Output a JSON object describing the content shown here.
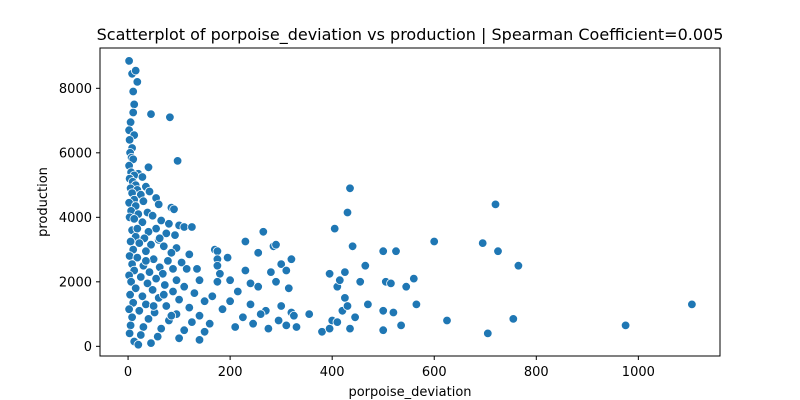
{
  "chart_data": {
    "type": "scatter",
    "title": "Scatterplot of porpoise_deviation vs production | Spearman Coefficient=0.005",
    "xlabel": "porpoise_deviation",
    "ylabel": "production",
    "xlim": [
      -55,
      1160
    ],
    "ylim": [
      -300,
      9250
    ],
    "x_ticks": [
      0,
      200,
      400,
      600,
      800,
      1000
    ],
    "y_ticks": [
      0,
      2000,
      4000,
      6000,
      8000
    ],
    "x_tick_labels": [
      "0",
      "200",
      "400",
      "600",
      "800",
      "1000"
    ],
    "y_tick_labels": [
      "0",
      "2000",
      "4000",
      "6000",
      "8000"
    ],
    "grid": false,
    "marker_color": "#1f77b4",
    "marker_edge_color": "#ffffff",
    "series": [
      {
        "points": [
          [
            2,
            8850
          ],
          [
            8,
            8450
          ],
          [
            15,
            8550
          ],
          [
            10,
            7900
          ],
          [
            18,
            8200
          ],
          [
            12,
            7500
          ],
          [
            10,
            7250
          ],
          [
            45,
            7200
          ],
          [
            82,
            7100
          ],
          [
            5,
            6950
          ],
          [
            2,
            6700
          ],
          [
            12,
            6550
          ],
          [
            3,
            6400
          ],
          [
            8,
            6150
          ],
          [
            4,
            6000
          ],
          [
            7,
            5850
          ],
          [
            10,
            5800
          ],
          [
            97,
            5750
          ],
          [
            2,
            5600
          ],
          [
            40,
            5550
          ],
          [
            6,
            5400
          ],
          [
            20,
            5350
          ],
          [
            12,
            5300
          ],
          [
            28,
            5250
          ],
          [
            3,
            5200
          ],
          [
            9,
            5100
          ],
          [
            15,
            5000
          ],
          [
            35,
            4950
          ],
          [
            5,
            4900
          ],
          [
            18,
            4850
          ],
          [
            42,
            4800
          ],
          [
            8,
            4750
          ],
          [
            25,
            4700
          ],
          [
            55,
            4600
          ],
          [
            12,
            4550
          ],
          [
            30,
            4500
          ],
          [
            2,
            4450
          ],
          [
            60,
            4400
          ],
          [
            15,
            4350
          ],
          [
            85,
            4300
          ],
          [
            90,
            4250
          ],
          [
            6,
            4200
          ],
          [
            38,
            4150
          ],
          [
            20,
            4100
          ],
          [
            48,
            4050
          ],
          [
            3,
            4000
          ],
          [
            12,
            3950
          ],
          [
            65,
            3900
          ],
          [
            28,
            3850
          ],
          [
            80,
            3800
          ],
          [
            100,
            3750
          ],
          [
            110,
            3700
          ],
          [
            125,
            3700
          ],
          [
            55,
            3650
          ],
          [
            8,
            3600
          ],
          [
            40,
            3550
          ],
          [
            75,
            3500
          ],
          [
            92,
            3450
          ],
          [
            15,
            3400
          ],
          [
            32,
            3350
          ],
          [
            60,
            3300
          ],
          [
            5,
            3250
          ],
          [
            22,
            3200
          ],
          [
            45,
            3150
          ],
          [
            70,
            3100
          ],
          [
            95,
            3050
          ],
          [
            10,
            3000
          ],
          [
            35,
            2950
          ],
          [
            85,
            2900
          ],
          [
            120,
            2850
          ],
          [
            3,
            2800
          ],
          [
            18,
            2750
          ],
          [
            50,
            2700
          ],
          [
            78,
            2650
          ],
          [
            105,
            2600
          ],
          [
            8,
            2550
          ],
          [
            30,
            2500
          ],
          [
            62,
            2450
          ],
          [
            88,
            2400
          ],
          [
            115,
            2400
          ],
          [
            135,
            2400
          ],
          [
            12,
            2350
          ],
          [
            42,
            2300
          ],
          [
            68,
            2250
          ],
          [
            2,
            2200
          ],
          [
            25,
            2150
          ],
          [
            55,
            2100
          ],
          [
            95,
            2050
          ],
          [
            140,
            2050
          ],
          [
            6,
            2000
          ],
          [
            38,
            1950
          ],
          [
            72,
            1900
          ],
          [
            110,
            1850
          ],
          [
            15,
            1800
          ],
          [
            48,
            1750
          ],
          [
            88,
            1700
          ],
          [
            130,
            1650
          ],
          [
            4,
            1600
          ],
          [
            28,
            1550
          ],
          [
            60,
            1500
          ],
          [
            100,
            1450
          ],
          [
            150,
            1400
          ],
          [
            10,
            1350
          ],
          [
            35,
            1300
          ],
          [
            75,
            1250
          ],
          [
            120,
            1200
          ],
          [
            2,
            1150
          ],
          [
            22,
            1100
          ],
          [
            52,
            1050
          ],
          [
            95,
            1000
          ],
          [
            140,
            950
          ],
          [
            8,
            900
          ],
          [
            40,
            850
          ],
          [
            80,
            800
          ],
          [
            125,
            750
          ],
          [
            160,
            700
          ],
          [
            5,
            650
          ],
          [
            30,
            600
          ],
          [
            65,
            550
          ],
          [
            110,
            500
          ],
          [
            150,
            450
          ],
          [
            3,
            400
          ],
          [
            25,
            350
          ],
          [
            58,
            300
          ],
          [
            100,
            250
          ],
          [
            140,
            200
          ],
          [
            12,
            150
          ],
          [
            45,
            100
          ],
          [
            20,
            50
          ],
          [
            70,
            1600
          ],
          [
            35,
            2650
          ],
          [
            18,
            3650
          ],
          [
            50,
            1250
          ],
          [
            85,
            950
          ],
          [
            62,
            3350
          ],
          [
            170,
            3000
          ],
          [
            175,
            2950
          ],
          [
            195,
            2750
          ],
          [
            230,
            3250
          ],
          [
            265,
            3550
          ],
          [
            285,
            3100
          ],
          [
            290,
            3150
          ],
          [
            320,
            2700
          ],
          [
            175,
            2700
          ],
          [
            175,
            2500
          ],
          [
            230,
            2350
          ],
          [
            255,
            2900
          ],
          [
            300,
            2550
          ],
          [
            310,
            2350
          ],
          [
            180,
            2250
          ],
          [
            200,
            2050
          ],
          [
            240,
            1950
          ],
          [
            280,
            2300
          ],
          [
            175,
            2000
          ],
          [
            215,
            1700
          ],
          [
            255,
            1850
          ],
          [
            290,
            2000
          ],
          [
            315,
            1800
          ],
          [
            165,
            1550
          ],
          [
            200,
            1400
          ],
          [
            240,
            1300
          ],
          [
            270,
            1100
          ],
          [
            300,
            1250
          ],
          [
            320,
            1050
          ],
          [
            185,
            1150
          ],
          [
            225,
            900
          ],
          [
            260,
            1000
          ],
          [
            295,
            800
          ],
          [
            325,
            950
          ],
          [
            210,
            600
          ],
          [
            245,
            700
          ],
          [
            275,
            550
          ],
          [
            310,
            650
          ],
          [
            330,
            600
          ],
          [
            355,
            1000
          ],
          [
            380,
            450
          ],
          [
            395,
            550
          ],
          [
            400,
            800
          ],
          [
            410,
            750
          ],
          [
            420,
            1100
          ],
          [
            425,
            1500
          ],
          [
            430,
            1250
          ],
          [
            435,
            550
          ],
          [
            445,
            900
          ],
          [
            410,
            1850
          ],
          [
            415,
            2050
          ],
          [
            425,
            2300
          ],
          [
            440,
            3100
          ],
          [
            455,
            2000
          ],
          [
            465,
            2500
          ],
          [
            470,
            1300
          ],
          [
            395,
            2250
          ],
          [
            435,
            4900
          ],
          [
            430,
            4150
          ],
          [
            405,
            3650
          ],
          [
            500,
            500
          ],
          [
            500,
            1100
          ],
          [
            505,
            2000
          ],
          [
            515,
            1950
          ],
          [
            525,
            2950
          ],
          [
            500,
            2950
          ],
          [
            520,
            1050
          ],
          [
            535,
            650
          ],
          [
            545,
            1850
          ],
          [
            560,
            2100
          ],
          [
            565,
            1300
          ],
          [
            600,
            3250
          ],
          [
            625,
            800
          ],
          [
            695,
            3200
          ],
          [
            705,
            400
          ],
          [
            720,
            4400
          ],
          [
            725,
            2950
          ],
          [
            755,
            850
          ],
          [
            765,
            2500
          ],
          [
            975,
            650
          ],
          [
            1105,
            1300
          ]
        ]
      }
    ]
  }
}
